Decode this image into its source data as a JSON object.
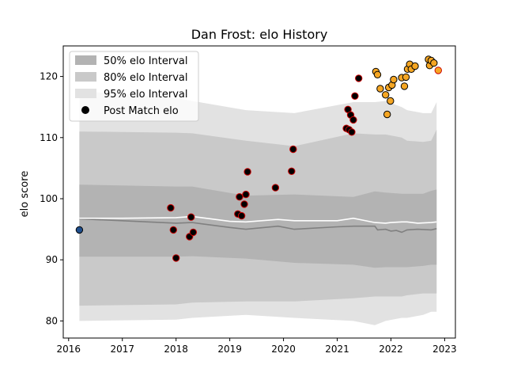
{
  "chart_data": {
    "type": "scatter",
    "title": "Dan Frost: elo History",
    "xlabel": "",
    "ylabel": "elo score",
    "xlim": [
      2015.9,
      2023.2
    ],
    "ylim": [
      77.2,
      125.0
    ],
    "x_ticks": [
      2016,
      2017,
      2018,
      2019,
      2020,
      2021,
      2022,
      2023
    ],
    "y_ticks": [
      80,
      90,
      100,
      110,
      120
    ],
    "legend": {
      "placement": "top-left",
      "entries": [
        {
          "label": "50% elo Interval",
          "color": "#b3b3b3"
        },
        {
          "label": "80% elo Interval",
          "color": "#c9c9c9"
        },
        {
          "label": "95% elo Interval",
          "color": "#e2e2e2"
        },
        {
          "label": "Post Match elo",
          "color": "#000000"
        }
      ]
    },
    "bands": {
      "x": [
        2016.2,
        2018.0,
        2018.3,
        2019.3,
        2020.2,
        2021.3,
        2021.7,
        2021.9,
        2022.2,
        2022.3,
        2022.6,
        2022.75,
        2022.85
      ],
      "p95_upper": [
        117.6,
        116.5,
        116.0,
        114.5,
        114.0,
        115.8,
        115.8,
        116.0,
        115.0,
        114.5,
        114.0,
        114.0,
        115.8
      ],
      "p95_lower": [
        80.0,
        80.2,
        80.5,
        81.0,
        80.5,
        80.0,
        79.3,
        80.0,
        80.5,
        80.5,
        81.0,
        81.5,
        81.5
      ],
      "p80_upper": [
        111.0,
        110.8,
        110.7,
        109.5,
        108.6,
        110.7,
        110.5,
        110.5,
        110.0,
        109.5,
        109.3,
        109.5,
        111.3
      ],
      "p80_lower": [
        82.5,
        82.7,
        83.0,
        83.2,
        83.2,
        83.7,
        84.0,
        84.0,
        84.0,
        84.2,
        84.5,
        84.5,
        84.5
      ],
      "p50_upper": [
        102.3,
        102.0,
        102.0,
        100.5,
        100.7,
        100.3,
        101.2,
        101.0,
        100.8,
        100.8,
        100.8,
        101.3,
        101.5
      ],
      "p50_lower": [
        90.5,
        90.5,
        90.6,
        90.2,
        89.5,
        89.2,
        88.7,
        88.8,
        88.8,
        88.8,
        89.0,
        89.2,
        89.2
      ]
    },
    "series": [
      {
        "kind": "line",
        "color": "#808080",
        "x": [
          2016.2,
          2017.0,
          2018.0,
          2018.3,
          2019.0,
          2019.3,
          2019.9,
          2020.2,
          2021.0,
          2021.3,
          2021.7,
          2021.75,
          2021.9,
          2022.0,
          2022.1,
          2022.2,
          2022.3,
          2022.5,
          2022.75,
          2022.85
        ],
        "y": [
          96.7,
          96.4,
          96.0,
          96.1,
          95.3,
          95.0,
          95.5,
          95.0,
          95.4,
          95.5,
          95.5,
          94.9,
          95.0,
          94.7,
          94.8,
          94.5,
          94.9,
          95.0,
          94.9,
          95.1
        ]
      },
      {
        "kind": "line",
        "color": "#ffffff",
        "x": [
          2016.2,
          2017.0,
          2018.0,
          2018.3,
          2019.0,
          2019.3,
          2019.9,
          2020.2,
          2021.0,
          2021.3,
          2021.7,
          2021.9,
          2022.0,
          2022.2,
          2022.3,
          2022.5,
          2022.75,
          2022.85
        ],
        "y": [
          96.8,
          96.8,
          96.9,
          97.1,
          96.3,
          96.2,
          96.6,
          96.4,
          96.4,
          96.8,
          96.1,
          96.0,
          96.1,
          96.2,
          96.2,
          96.0,
          96.1,
          96.2
        ]
      },
      {
        "kind": "points",
        "fill": "#1f4e8c",
        "edge": "#000000",
        "x": [
          2016.2
        ],
        "y": [
          94.9
        ]
      },
      {
        "kind": "points",
        "fill": "#000000",
        "edge": "#cc0000",
        "x": [
          2017.9,
          2017.95,
          2018.0,
          2018.25,
          2018.28,
          2018.32,
          2019.15,
          2019.18,
          2019.22,
          2019.27,
          2019.3,
          2019.33,
          2019.85,
          2020.15,
          2020.18,
          2021.17,
          2021.2,
          2021.22,
          2021.25,
          2021.27,
          2021.3,
          2021.33,
          2021.4
        ],
        "y": [
          98.5,
          94.9,
          90.3,
          93.8,
          97.0,
          94.5,
          97.5,
          100.3,
          97.2,
          99.1,
          100.7,
          104.4,
          101.8,
          104.5,
          108.1,
          111.5,
          114.6,
          111.3,
          113.7,
          110.9,
          112.9,
          116.8,
          119.7
        ]
      },
      {
        "kind": "points",
        "fill": "#f5a623",
        "edge": "#000000",
        "x": [
          2021.72,
          2021.75,
          2021.8,
          2021.9,
          2021.93,
          2021.96,
          2021.99,
          2022.02,
          2022.05,
          2022.2,
          2022.25,
          2022.28,
          2022.31,
          2022.35,
          2022.38,
          2022.45,
          2022.7,
          2022.72,
          2022.75,
          2022.8
        ],
        "y": [
          120.8,
          120.3,
          118.0,
          117.0,
          113.8,
          118.2,
          116.0,
          118.6,
          119.5,
          119.8,
          118.4,
          119.9,
          121.2,
          122.0,
          121.2,
          121.7,
          122.8,
          121.8,
          122.6,
          122.2
        ]
      },
      {
        "kind": "points",
        "fill": "#f5a623",
        "edge": "#cc0000",
        "x": [
          2022.88
        ],
        "y": [
          121.0
        ]
      }
    ]
  }
}
